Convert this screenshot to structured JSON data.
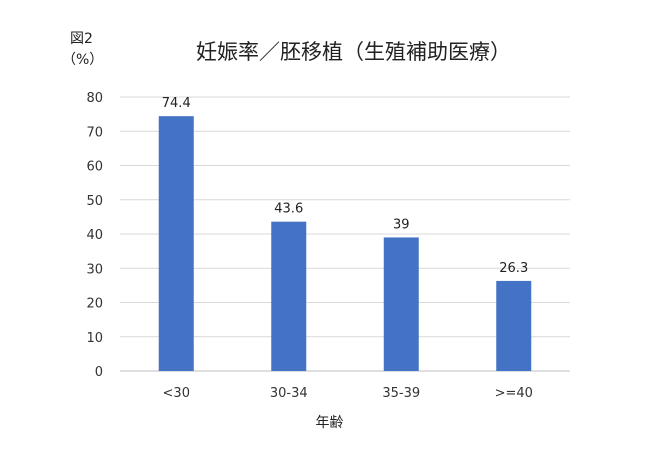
{
  "header": {
    "figure_label": "図2",
    "unit_label": "（%）"
  },
  "chart_data": {
    "type": "bar",
    "title": "妊娠率／胚移植（生殖補助医療）",
    "xlabel": "年齢",
    "ylabel": "（%）",
    "categories": [
      "<30",
      "30-34",
      "35-39",
      ">=40"
    ],
    "values": [
      74.4,
      43.6,
      39,
      26.3
    ],
    "ylim": [
      0,
      80
    ],
    "yticks": [
      0,
      10,
      20,
      30,
      40,
      50,
      60,
      70,
      80
    ],
    "grid": true,
    "legend": "none",
    "bar_color": "#4472c4",
    "grid_color": "#d9d9d9"
  }
}
